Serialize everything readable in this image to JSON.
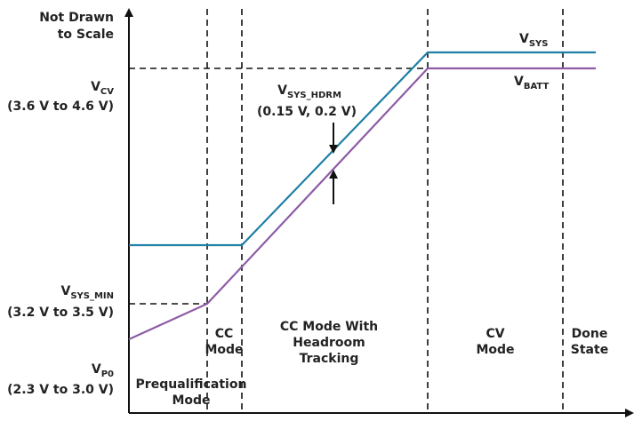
{
  "scale_note": [
    "Not Drawn",
    "to Scale"
  ],
  "y_labels": [
    {
      "main": "V",
      "sub": "CV",
      "range": "(3.6 V to 4.6 V)"
    },
    {
      "main": "V",
      "sub": "SYS_MIN",
      "range": "(3.2 V to 3.5 V)"
    },
    {
      "main": "V",
      "sub": "P0",
      "range": "(2.3 V to 3.0 V)"
    }
  ],
  "lines": [
    {
      "main": "V",
      "sub": "SYS"
    },
    {
      "main": "V",
      "sub": "BATT"
    }
  ],
  "headroom": {
    "main": "V",
    "sub": "SYS_HDRM",
    "range": "(0.15 V, 0.2 V)"
  },
  "regions": [
    [
      "Prequalification",
      "Mode"
    ],
    [
      "CC",
      "Mode"
    ],
    [
      "CC Mode With",
      "Headroom",
      "Tracking"
    ],
    [
      "CV",
      "Mode"
    ],
    [
      "Done",
      "State"
    ]
  ]
}
